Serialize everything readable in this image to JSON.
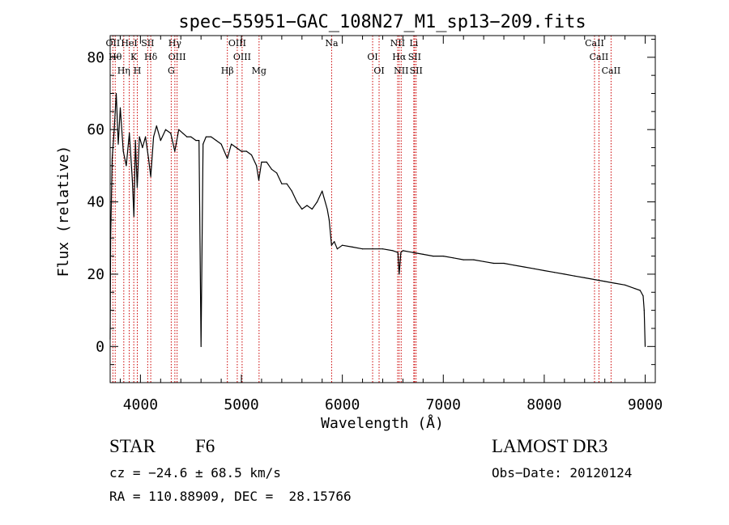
{
  "chart_data": {
    "type": "line",
    "title": "spec−55951−GAC_108N27_M1_sp13−209.fits",
    "xlabel": "Wavelength (Å)",
    "ylabel": "Flux (relative)",
    "xlim": [
      3700,
      9100
    ],
    "ylim": [
      -10,
      86
    ],
    "xticks": [
      4000,
      5000,
      6000,
      7000,
      8000,
      9000
    ],
    "yticks": [
      0,
      20,
      40,
      60,
      80
    ],
    "grid": false,
    "series": [
      {
        "name": "spectrum",
        "x": [
          3700,
          3705,
          3720,
          3740,
          3760,
          3780,
          3800,
          3830,
          3860,
          3890,
          3920,
          3935,
          3950,
          3968,
          3990,
          4020,
          4050,
          4080,
          4102,
          4130,
          4160,
          4200,
          4250,
          4300,
          4340,
          4380,
          4420,
          4460,
          4500,
          4550,
          4580,
          4600,
          4620,
          4650,
          4700,
          4750,
          4800,
          4861,
          4900,
          4950,
          5000,
          5050,
          5100,
          5150,
          5172,
          5200,
          5250,
          5300,
          5350,
          5400,
          5450,
          5500,
          5550,
          5600,
          5650,
          5700,
          5750,
          5800,
          5850,
          5870,
          5893,
          5920,
          5950,
          6000,
          6100,
          6200,
          6300,
          6400,
          6500,
          6550,
          6563,
          6580,
          6600,
          6700,
          6800,
          6900,
          7000,
          7100,
          7200,
          7300,
          7400,
          7500,
          7600,
          7700,
          7800,
          7900,
          8000,
          8100,
          8200,
          8300,
          8400,
          8500,
          8600,
          8700,
          8800,
          8900,
          8950,
          8980,
          8990,
          9000
        ],
        "flux": [
          2,
          30,
          52,
          60,
          70,
          56,
          66,
          54,
          50,
          59,
          46,
          36,
          57,
          44,
          58,
          55,
          58,
          52,
          47,
          58,
          61,
          57,
          60,
          59,
          54,
          60,
          59,
          58,
          58,
          57,
          57,
          0,
          56,
          58,
          58,
          57,
          56,
          52,
          56,
          55,
          54,
          54,
          53,
          50,
          46,
          51,
          51,
          49,
          48,
          45,
          45,
          43,
          40,
          38,
          39,
          38,
          40,
          43,
          38,
          35,
          28,
          29,
          27,
          28,
          27.5,
          27,
          27,
          27,
          26.5,
          26,
          20,
          26,
          26.5,
          26,
          25.5,
          25,
          25,
          24.5,
          24,
          24,
          23.5,
          23,
          23,
          22.5,
          22,
          21.5,
          21,
          20.5,
          20,
          19.5,
          19,
          18.5,
          18,
          17.5,
          17,
          16,
          15.5,
          14,
          10,
          0
        ]
      }
    ],
    "line_markers": [
      {
        "name": "OII",
        "wavelength": 3727
      },
      {
        "name": "Hθ",
        "wavelength": 3750
      },
      {
        "name": "Hη",
        "wavelength": 3835
      },
      {
        "name": "HeI",
        "wavelength": 3889
      },
      {
        "name": "K",
        "wavelength": 3934
      },
      {
        "name": "H",
        "wavelength": 3969
      },
      {
        "name": "SII",
        "wavelength": 4072
      },
      {
        "name": "Hδ",
        "wavelength": 4102
      },
      {
        "name": "G",
        "wavelength": 4305
      },
      {
        "name": "Hγ",
        "wavelength": 4341
      },
      {
        "name": "OIII",
        "wavelength": 4363
      },
      {
        "name": "Hβ",
        "wavelength": 4861
      },
      {
        "name": "OIII",
        "wavelength": 4959
      },
      {
        "name": "OIII",
        "wavelength": 5007
      },
      {
        "name": "Mg",
        "wavelength": 5175
      },
      {
        "name": "Na",
        "wavelength": 5894
      },
      {
        "name": "OI",
        "wavelength": 6300
      },
      {
        "name": "OI",
        "wavelength": 6364
      },
      {
        "name": "NII",
        "wavelength": 6548
      },
      {
        "name": "Hα",
        "wavelength": 6563
      },
      {
        "name": "NII",
        "wavelength": 6583
      },
      {
        "name": "Li",
        "wavelength": 6708
      },
      {
        "name": "SII",
        "wavelength": 6716
      },
      {
        "name": "SII",
        "wavelength": 6731
      },
      {
        "name": "CaII",
        "wavelength": 8498
      },
      {
        "name": "CaII",
        "wavelength": 8542
      },
      {
        "name": "CaII",
        "wavelength": 8662
      }
    ]
  },
  "info": {
    "object_class": "STAR",
    "subclass": "F6",
    "survey": "LAMOST DR3",
    "redshift_line": "cz = −24.6 ± 68.5 km/s",
    "obs_date_line": "Obs−Date: 20120124",
    "coords_line": "RA = 110.88909, DEC =  28.15766"
  },
  "colors": {
    "spectrum": "#000000",
    "marker": "#cc0000",
    "axes": "#000000",
    "background": "#ffffff"
  }
}
